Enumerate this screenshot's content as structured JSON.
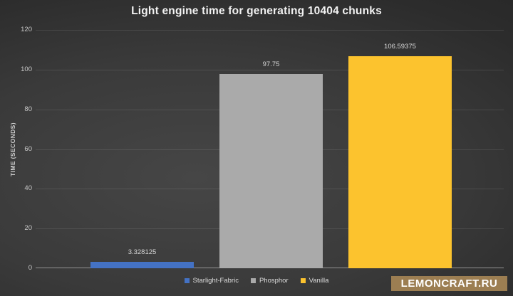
{
  "chart_data": {
    "type": "bar",
    "title": "Light engine time for generating 10404 chunks",
    "categories": [
      "Starlight-Fabric",
      "Phosphor",
      "Vanilla"
    ],
    "values": [
      3.328125,
      97.75,
      106.59375
    ],
    "value_labels": [
      "3.328125",
      "97.75",
      "106.59375"
    ],
    "colors": [
      "#4472c4",
      "#aaaaaa",
      "#fcc32e"
    ],
    "xlabel": "",
    "ylabel": "TIME (SECONDS)",
    "ylim": [
      0,
      120
    ],
    "ytick_step": 20,
    "grid": true,
    "legend_position": "bottom"
  },
  "watermark": {
    "text": "LEMONCRAFT.RU",
    "bg_color": "#9c7e52"
  }
}
